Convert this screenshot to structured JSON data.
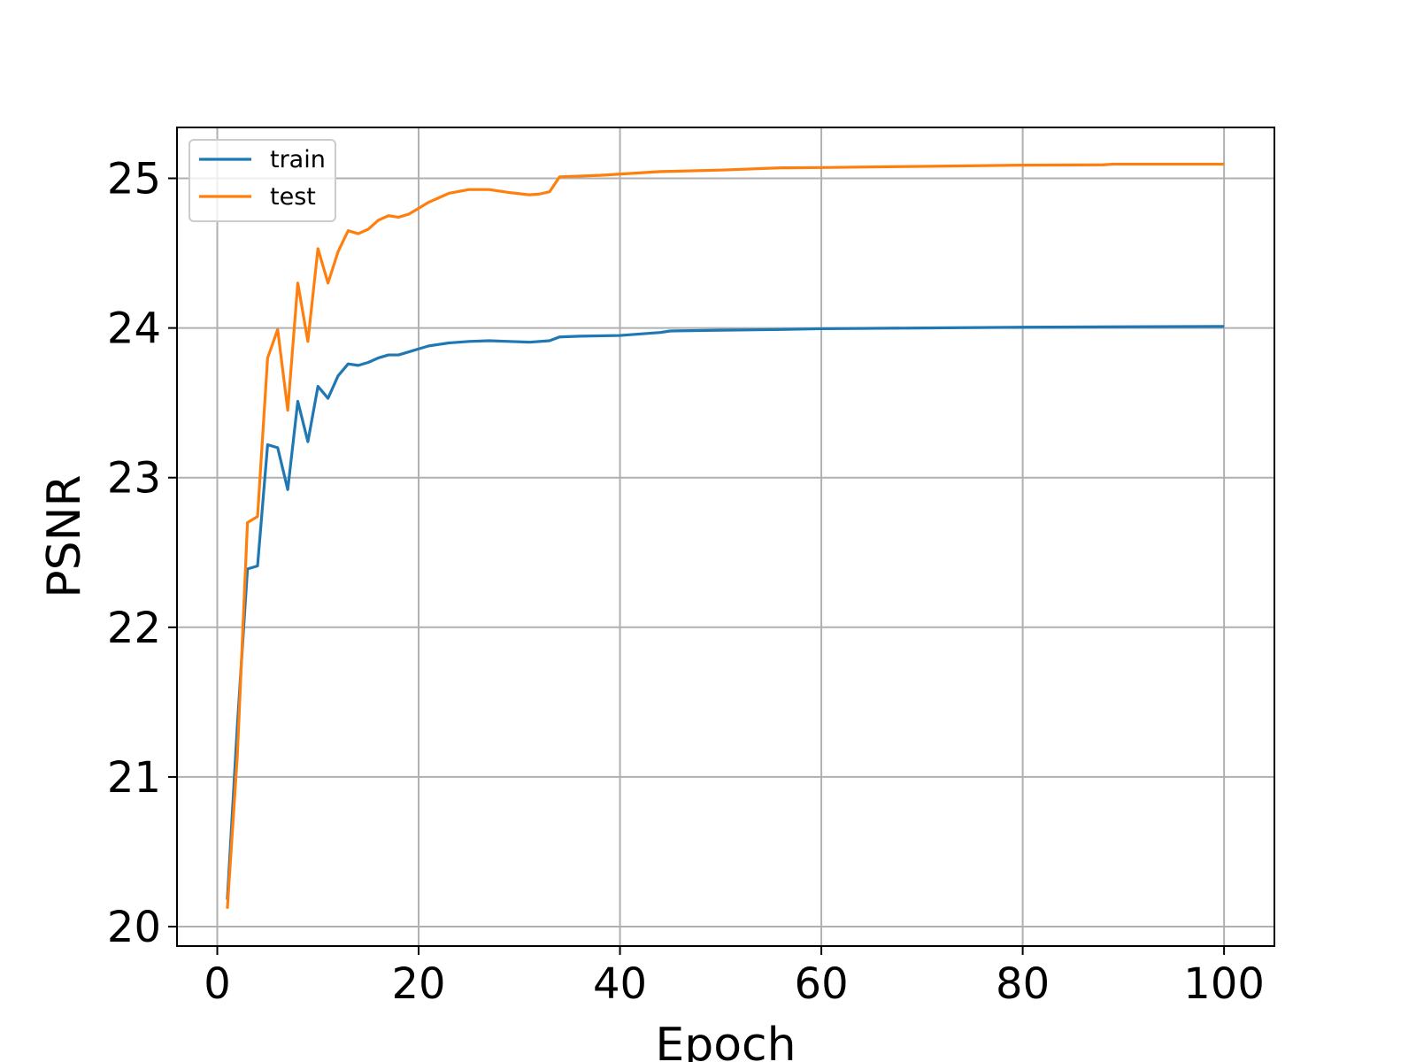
{
  "chart_data": {
    "type": "line",
    "title": "",
    "xlabel": "Epoch",
    "ylabel": "PSNR",
    "xlim": [
      -4,
      105
    ],
    "ylim": [
      19.87,
      25.34
    ],
    "xticks": [
      0,
      20,
      40,
      60,
      80,
      100
    ],
    "yticks": [
      20,
      21,
      22,
      23,
      24,
      25
    ],
    "grid": true,
    "legend": "upper-left",
    "series": [
      {
        "name": "train",
        "color": "#1f77b4",
        "points": [
          [
            1,
            20.18
          ],
          [
            2,
            21.35
          ],
          [
            3,
            22.39
          ],
          [
            4,
            22.41
          ],
          [
            5,
            23.22
          ],
          [
            6,
            23.2
          ],
          [
            7,
            22.92
          ],
          [
            8,
            23.51
          ],
          [
            9,
            23.24
          ],
          [
            10,
            23.61
          ],
          [
            11,
            23.53
          ],
          [
            12,
            23.68
          ],
          [
            13,
            23.76
          ],
          [
            14,
            23.75
          ],
          [
            15,
            23.77
          ],
          [
            16,
            23.8
          ],
          [
            17,
            23.82
          ],
          [
            18,
            23.82
          ],
          [
            19,
            23.84
          ],
          [
            20,
            23.86
          ],
          [
            21,
            23.88
          ],
          [
            22,
            23.89
          ],
          [
            23,
            23.9
          ],
          [
            25,
            23.91
          ],
          [
            27,
            23.915
          ],
          [
            29,
            23.91
          ],
          [
            31,
            23.905
          ],
          [
            33,
            23.915
          ],
          [
            34,
            23.94
          ],
          [
            36,
            23.945
          ],
          [
            40,
            23.95
          ],
          [
            44,
            23.97
          ],
          [
            45,
            23.98
          ],
          [
            50,
            23.985
          ],
          [
            56,
            23.99
          ],
          [
            60,
            23.995
          ],
          [
            70,
            24.0
          ],
          [
            80,
            24.005
          ],
          [
            90,
            24.008
          ],
          [
            100,
            24.01
          ]
        ]
      },
      {
        "name": "test",
        "color": "#ff7f0e",
        "points": [
          [
            1,
            20.12
          ],
          [
            2,
            21.15
          ],
          [
            3,
            22.7
          ],
          [
            4,
            22.74
          ],
          [
            5,
            23.8
          ],
          [
            6,
            23.99
          ],
          [
            7,
            23.45
          ],
          [
            8,
            24.3
          ],
          [
            9,
            23.91
          ],
          [
            10,
            24.53
          ],
          [
            11,
            24.3
          ],
          [
            12,
            24.51
          ],
          [
            13,
            24.65
          ],
          [
            14,
            24.63
          ],
          [
            15,
            24.66
          ],
          [
            16,
            24.72
          ],
          [
            17,
            24.75
          ],
          [
            18,
            24.74
          ],
          [
            19,
            24.76
          ],
          [
            20,
            24.8
          ],
          [
            21,
            24.84
          ],
          [
            22,
            24.87
          ],
          [
            23,
            24.9
          ],
          [
            25,
            24.925
          ],
          [
            27,
            24.925
          ],
          [
            29,
            24.905
          ],
          [
            31,
            24.89
          ],
          [
            32,
            24.895
          ],
          [
            33,
            24.91
          ],
          [
            34,
            25.01
          ],
          [
            38,
            25.02
          ],
          [
            44,
            25.045
          ],
          [
            50,
            25.055
          ],
          [
            56,
            25.07
          ],
          [
            60,
            25.072
          ],
          [
            70,
            25.08
          ],
          [
            80,
            25.088
          ],
          [
            88,
            25.09
          ],
          [
            89,
            25.095
          ],
          [
            100,
            25.095
          ]
        ]
      }
    ]
  }
}
